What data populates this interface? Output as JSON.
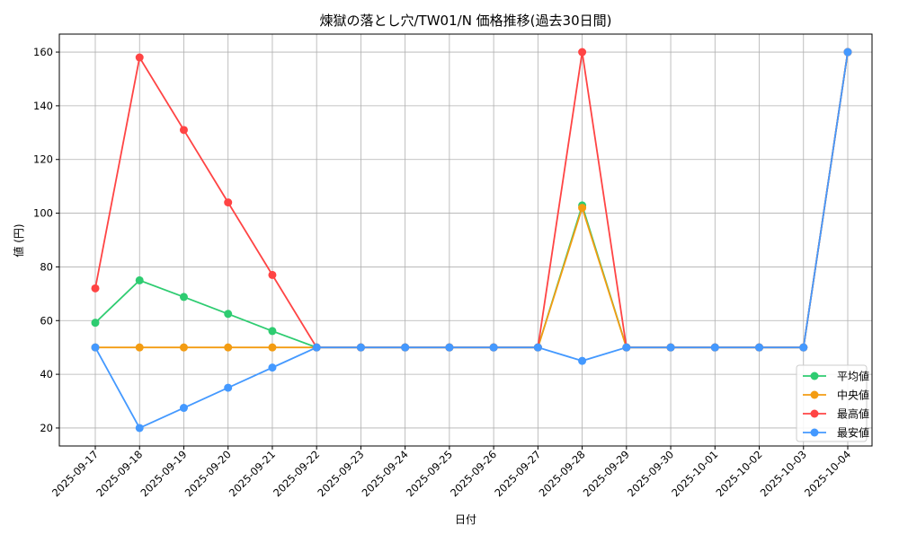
{
  "chart_data": {
    "type": "line",
    "title": "煉獄の落とし穴/TW01/N 価格推移(過去30日間)",
    "xlabel": "日付",
    "ylabel": "値 (円)",
    "ylim": [
      13.3,
      166.7
    ],
    "yticks": [
      20,
      40,
      60,
      80,
      100,
      120,
      140,
      160
    ],
    "grid": true,
    "legend_position": "bottom-right",
    "x": [
      "2025-09-17",
      "2025-09-18",
      "2025-09-19",
      "2025-09-20",
      "2025-09-21",
      "2025-09-22",
      "2025-09-23",
      "2025-09-24",
      "2025-09-25",
      "2025-09-26",
      "2025-09-27",
      "2025-09-28",
      "2025-09-29",
      "2025-09-30",
      "2025-10-01",
      "2025-10-02",
      "2025-10-03",
      "2025-10-04"
    ],
    "series": [
      {
        "name": "平均値",
        "color": "#2ecc71",
        "values": [
          59.2,
          75,
          68.8,
          62.5,
          56.1,
          50,
          50,
          50,
          50,
          50,
          50,
          102.9,
          50,
          50,
          50,
          50,
          50,
          160
        ]
      },
      {
        "name": "中央値",
        "color": "#f39c12",
        "values": [
          50,
          50,
          50,
          50,
          50,
          50,
          50,
          50,
          50,
          50,
          50,
          102,
          50,
          50,
          50,
          50,
          50,
          160
        ]
      },
      {
        "name": "最高値",
        "color": "#ff4444",
        "values": [
          72,
          158,
          131,
          104,
          77,
          50,
          50,
          50,
          50,
          50,
          50,
          160,
          50,
          50,
          50,
          50,
          50,
          160
        ]
      },
      {
        "name": "最安値",
        "color": "#4499ff",
        "values": [
          50,
          20,
          27.5,
          35,
          42.5,
          50,
          50,
          50,
          50,
          50,
          50,
          45,
          50,
          50,
          50,
          50,
          50,
          160
        ]
      }
    ]
  }
}
